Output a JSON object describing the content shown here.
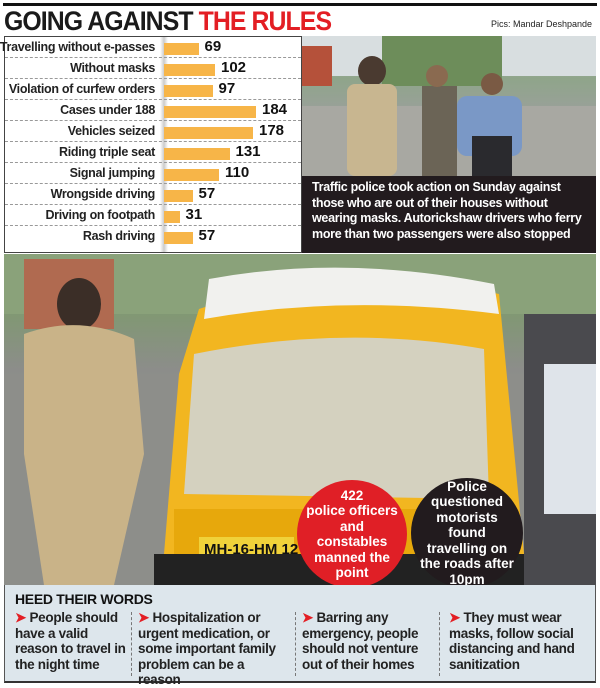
{
  "header": {
    "title_black": "GOING AGAINST",
    "title_red": "THE RULES",
    "credit": "Pics: Mandar Deshpande"
  },
  "chart_data": {
    "type": "bar",
    "orientation": "horizontal",
    "categories": [
      "Travelling without e-passes",
      "Without masks",
      "Violation of curfew orders",
      "Cases under 188",
      "Vehicles seized",
      "Riding triple seat",
      "Signal jumping",
      "Wrongside driving",
      "Driving on footpath",
      "Rash driving"
    ],
    "values": [
      69,
      102,
      97,
      184,
      178,
      131,
      110,
      57,
      31,
      57
    ],
    "bar_color": "#f7b548",
    "data_labels": true,
    "grid": false
  },
  "caption": "Traffic police took action on Sunday against those who are out of their houses without wearing masks. Autorickshaw drivers who ferry more than two passengers were also stopped",
  "callouts": {
    "red_number": "422",
    "red_text": "police officers and constables manned the point",
    "black_text": "Police questioned motorists found travelling on the roads after 10pm"
  },
  "photo_text": {
    "rickshaw_plate": "MH-16-HM 12"
  },
  "heed": {
    "title": "HEED THEIR WORDS",
    "items": [
      "People should have a valid reason to travel in the night time",
      "Hospitalization or urgent medication, or some important family problem can be a reason",
      "Barring any emergency, people should not venture out of their homes",
      "They must wear masks, follow social distancing and hand sanitization"
    ]
  },
  "colors": {
    "accent": "#e31e24",
    "bar": "#f7b548",
    "dark": "#221b1e",
    "panel": "#dde6ec"
  }
}
